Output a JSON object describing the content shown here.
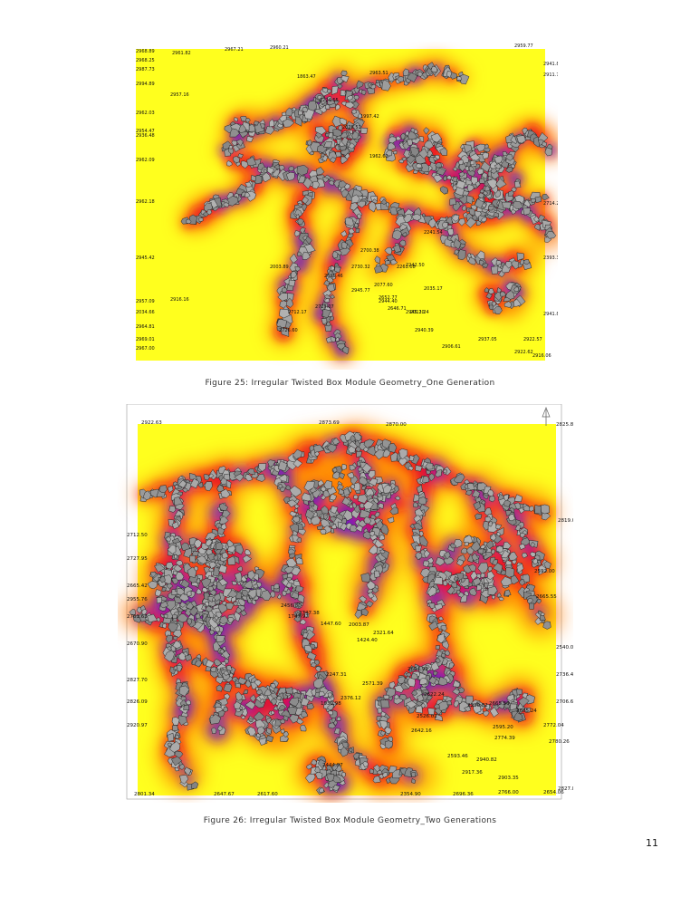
{
  "figures": [
    {
      "caption": "Figure 25: Irregular Twisted Box Module Geometry_One Generation",
      "labels": [
        "2968.89",
        "2961.82",
        "2968.25",
        "2987.73",
        "2994.89",
        "2957.16",
        "2962.03",
        "2954.47",
        "2936.48",
        "2962.09",
        "2962.18",
        "2945.42",
        "2957.09",
        "2916.16",
        "2034.66",
        "2964.81",
        "2969.01",
        "2967.00",
        "2967.21",
        "2960.21",
        "2963.51",
        "2959.77",
        "2941.81",
        "2911.72",
        "2714.22",
        "2393.35",
        "2941.81",
        "2922.57",
        "2922.62",
        "2916.06",
        "2937.05",
        "2906.61",
        "2940.39",
        "2945.20",
        "2944.40",
        "2945.77",
        "2727.07",
        "2726.60",
        "2712.17",
        "2695.46",
        "2730.32",
        "2077.60",
        "2652.77",
        "2646.71",
        "2700.38",
        "2242.50",
        "2241.54",
        "2011.24",
        "2035.17",
        "1997.42",
        "1863.47",
        "2224.55",
        "2028.51",
        "1962.62",
        "2261.08",
        "2003.89"
      ]
    },
    {
      "caption": "Figure 26: Irregular Twisted Box Module Geometry_Two Generations",
      "labels": [
        "2922.63",
        "2873.69",
        "2870.00",
        "2825.88",
        "2712.50",
        "2727.95",
        "2665.42",
        "2955.76",
        "2761.63",
        "2670.90",
        "2827.70",
        "2826.09",
        "2920.97",
        "2801.34",
        "2647.67",
        "2617.60",
        "2747.38",
        "2766.00",
        "2696.36",
        "2665.55",
        "2819.04",
        "2592.00",
        "2540.08",
        "2736.47",
        "2706.66",
        "2772.04",
        "2780.26",
        "2774.39",
        "2595.20",
        "2593.46",
        "2940.82",
        "2917.36",
        "2903.35",
        "2827.80",
        "2654.06",
        "2665.24",
        "2665.50",
        "2642.16",
        "2622.24",
        "2526.02",
        "2604.99",
        "2376.12",
        "2571.39",
        "2247.31",
        "2321.64",
        "2003.87",
        "1424.40",
        "2456.80",
        "1447.60",
        "1747.97",
        "1930.98",
        "2220.82",
        "2354.90",
        "2444.97"
      ]
    }
  ],
  "page_number": "11",
  "colors": {
    "heat_low": "#ffff1e",
    "heat_mid": "#ff7a00",
    "heat_high": "#e8102a",
    "heat_peak": "#6a18c8",
    "module_fill": "#9a9a9a",
    "module_stroke": "#1a1a1a"
  }
}
